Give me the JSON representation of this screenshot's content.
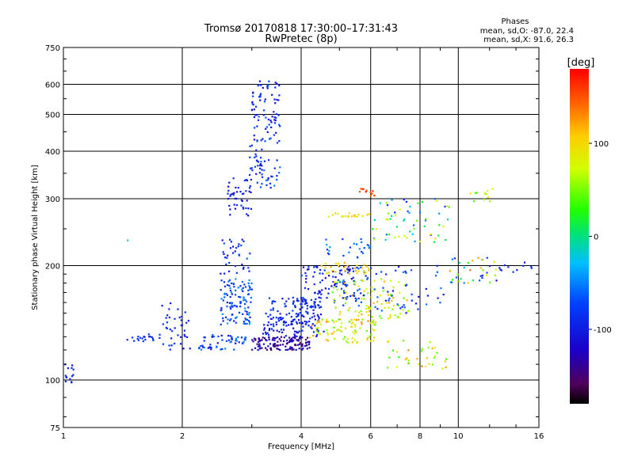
{
  "chart_data": {
    "type": "scatter",
    "title": "Tromsø 20170818 17:30:00–17:31:43",
    "subtitle": "RwPretec (8p)",
    "xlabel": "Frequency [MHz]",
    "ylabel": "Stationary phase Virtual Height [km]",
    "xscale": "log",
    "yscale": "log",
    "xlim": [
      1,
      16
    ],
    "ylim": [
      75,
      750
    ],
    "x_ticks": [
      1,
      2,
      4,
      6,
      8,
      10,
      16
    ],
    "y_ticks": [
      75,
      100,
      200,
      300,
      400,
      500,
      600,
      750
    ],
    "grid": true,
    "stats": {
      "heading": "Phases",
      "line_o": "mean, sd,O: -87.0, 22.4",
      "line_x": "mean, sd,X:  91.6, 26.3"
    },
    "colorbar": {
      "label": "[deg]",
      "range": [
        -180,
        180
      ],
      "ticks": [
        100,
        0,
        -100
      ],
      "colormap": "rainbow"
    },
    "clusters": [
      {
        "f": [
          1.0,
          1.06
        ],
        "h": [
          96,
          112
        ],
        "phase": [
          -110,
          -80
        ],
        "n": 14
      },
      {
        "f": [
          1.43,
          1.46
        ],
        "h": [
          232,
          236
        ],
        "phase": [
          -20,
          -10
        ],
        "n": 1
      },
      {
        "f": [
          1.45,
          1.7
        ],
        "h": [
          126,
          132
        ],
        "phase": [
          -95,
          -75
        ],
        "n": 18
      },
      {
        "f": [
          1.75,
          2.1
        ],
        "h": [
          120,
          160
        ],
        "phase": [
          -110,
          -80
        ],
        "n": 40
      },
      {
        "f": [
          2.2,
          2.9
        ],
        "h": [
          120,
          132
        ],
        "phase": [
          -120,
          -40
        ],
        "n": 55
      },
      {
        "f": [
          2.5,
          3.0
        ],
        "h": [
          140,
          185
        ],
        "phase": [
          -110,
          -40
        ],
        "n": 110
      },
      {
        "f": [
          2.5,
          3.0
        ],
        "h": [
          190,
          240
        ],
        "phase": [
          -110,
          -60
        ],
        "n": 35
      },
      {
        "f": [
          2.6,
          3.0
        ],
        "h": [
          270,
          340
        ],
        "phase": [
          -120,
          -80
        ],
        "n": 45
      },
      {
        "f": [
          2.95,
          3.2
        ],
        "h": [
          330,
          420
        ],
        "phase": [
          -110,
          -70
        ],
        "n": 25
      },
      {
        "f": [
          3.0,
          3.55
        ],
        "h": [
          420,
          620
        ],
        "phase": [
          -120,
          -60
        ],
        "n": 80
      },
      {
        "f": [
          3.1,
          3.55
        ],
        "h": [
          320,
          380
        ],
        "phase": [
          -110,
          -50
        ],
        "n": 25
      },
      {
        "f": [
          3.0,
          4.2
        ],
        "h": [
          120,
          130
        ],
        "phase": [
          -160,
          -100
        ],
        "n": 130
      },
      {
        "f": [
          3.2,
          4.6
        ],
        "h": [
          130,
          150
        ],
        "phase": [
          -120,
          -80
        ],
        "n": 90
      },
      {
        "f": [
          3.3,
          4.3
        ],
        "h": [
          140,
          165
        ],
        "phase": [
          -110,
          -70
        ],
        "n": 60
      },
      {
        "f": [
          3.8,
          4.5
        ],
        "h": [
          155,
          162
        ],
        "phase": [
          -100,
          -80
        ],
        "n": 30
      },
      {
        "f": [
          4.0,
          5.5
        ],
        "h": [
          160,
          200
        ],
        "phase": [
          -130,
          -70
        ],
        "n": 90
      },
      {
        "f": [
          4.2,
          6.2
        ],
        "h": [
          125,
          145
        ],
        "phase": [
          40,
          130
        ],
        "n": 90
      },
      {
        "f": [
          4.8,
          7.5
        ],
        "h": [
          145,
          185
        ],
        "phase": [
          40,
          120
        ],
        "n": 90
      },
      {
        "f": [
          5.0,
          9.5
        ],
        "h": [
          150,
          200
        ],
        "phase": [
          -110,
          -50
        ],
        "n": 70
      },
      {
        "f": [
          4.5,
          6.0
        ],
        "h": [
          190,
          205
        ],
        "phase": [
          90,
          120
        ],
        "n": 30
      },
      {
        "f": [
          4.5,
          6.0
        ],
        "h": [
          210,
          235
        ],
        "phase": [
          -90,
          -40
        ],
        "n": 25
      },
      {
        "f": [
          4.6,
          6.0
        ],
        "h": [
          268,
          275
        ],
        "phase": [
          80,
          110
        ],
        "n": 20
      },
      {
        "f": [
          5.6,
          6.2
        ],
        "h": [
          305,
          320
        ],
        "phase": [
          140,
          170
        ],
        "n": 12
      },
      {
        "f": [
          6.0,
          9.5
        ],
        "h": [
          230,
          300
        ],
        "phase": [
          -100,
          100
        ],
        "n": 60
      },
      {
        "f": [
          6.5,
          9.5
        ],
        "h": [
          105,
          130
        ],
        "phase": [
          30,
          140
        ],
        "n": 35
      },
      {
        "f": [
          9.5,
          12.5
        ],
        "h": [
          180,
          210
        ],
        "phase": [
          -120,
          140
        ],
        "n": 35
      },
      {
        "f": [
          10.5,
          12.5
        ],
        "h": [
          295,
          320
        ],
        "phase": [
          30,
          100
        ],
        "n": 12
      },
      {
        "f": [
          12.0,
          15.5
        ],
        "h": [
          190,
          205
        ],
        "phase": [
          -110,
          -80
        ],
        "n": 12
      }
    ]
  }
}
